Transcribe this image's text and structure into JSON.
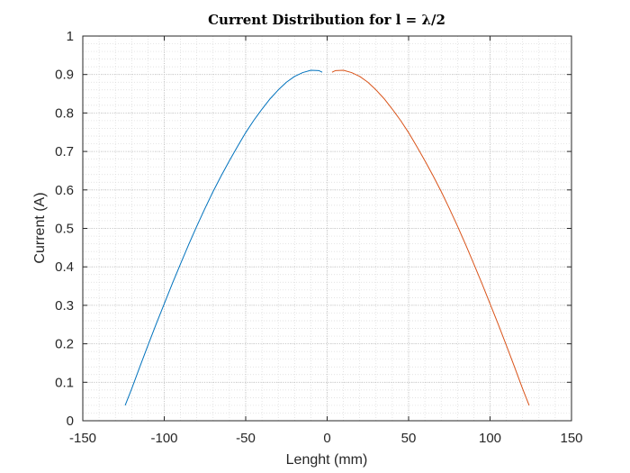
{
  "chart_data": {
    "type": "line",
    "title": "Current Distribution for l = λ/2",
    "xlabel": "Lenght (mm)",
    "ylabel": "Current (A)",
    "xlim": [
      -150,
      150
    ],
    "ylim": [
      0,
      1
    ],
    "x_ticks": [
      "-150",
      "-100",
      "-50",
      "0",
      "50",
      "100",
      "150"
    ],
    "y_ticks": [
      "0",
      "0.1",
      "0.2",
      "0.3",
      "0.4",
      "0.5",
      "0.6",
      "0.7",
      "0.8",
      "0.9",
      "1"
    ],
    "grid": true,
    "minor_grid": true,
    "series": [
      {
        "color": "#0072BD",
        "x": [
          -124,
          -120,
          -115,
          -110,
          -105,
          -100,
          -95,
          -90,
          -85,
          -80,
          -75,
          -70,
          -65,
          -60,
          -55,
          -50,
          -45,
          -40,
          -35,
          -30,
          -25,
          -20,
          -15,
          -10,
          -5,
          -3
        ],
        "y": [
          0.04,
          0.083,
          0.14,
          0.196,
          0.251,
          0.304,
          0.357,
          0.408,
          0.458,
          0.506,
          0.552,
          0.596,
          0.637,
          0.676,
          0.713,
          0.749,
          0.781,
          0.81,
          0.837,
          0.86,
          0.88,
          0.895,
          0.905,
          0.911,
          0.91,
          0.906
        ]
      },
      {
        "color": "#D95319",
        "x": [
          3,
          5,
          10,
          15,
          20,
          25,
          30,
          35,
          40,
          45,
          50,
          55,
          60,
          65,
          70,
          75,
          80,
          85,
          90,
          95,
          100,
          105,
          110,
          115,
          120,
          124
        ],
        "y": [
          0.906,
          0.91,
          0.911,
          0.905,
          0.895,
          0.88,
          0.86,
          0.837,
          0.81,
          0.781,
          0.749,
          0.713,
          0.676,
          0.637,
          0.596,
          0.552,
          0.506,
          0.458,
          0.408,
          0.357,
          0.304,
          0.251,
          0.196,
          0.14,
          0.083,
          0.04
        ]
      }
    ]
  }
}
